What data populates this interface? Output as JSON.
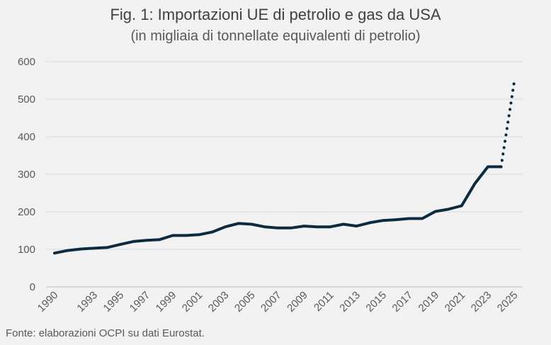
{
  "header": {
    "title": "Fig. 1: Importazioni UE di petrolio e gas da USA",
    "subtitle": "(in migliaia di tonnellate equivalenti di petrolio)"
  },
  "footer": {
    "source": "Fonte: elaborazioni OCPI su dati Eurostat."
  },
  "chart_data": {
    "type": "line",
    "title": "Fig. 1: Importazioni UE di petrolio e gas da USA",
    "subtitle": "(in migliaia di tonnellate equivalenti di petrolio)",
    "xlabel": "",
    "ylabel": "",
    "xlim": [
      1990,
      2025
    ],
    "ylim": [
      0,
      600
    ],
    "y_ticks": [
      0,
      100,
      200,
      300,
      400,
      500,
      600
    ],
    "x_tick_labels": [
      "1990",
      "1993",
      "1995",
      "1997",
      "1999",
      "2001",
      "2003",
      "2005",
      "2007",
      "2009",
      "2011",
      "2013",
      "2015",
      "2017",
      "2019",
      "2021",
      "2023",
      "2025"
    ],
    "grid": "horizontal",
    "legend": "none",
    "series": [
      {
        "style": "solid",
        "color": "#0d2b3e",
        "x": [
          1990,
          1991,
          1992,
          1993,
          1994,
          1995,
          1996,
          1997,
          1998,
          1999,
          2000,
          2001,
          2002,
          2003,
          2004,
          2005,
          2006,
          2007,
          2008,
          2009,
          2010,
          2011,
          2012,
          2013,
          2014,
          2015,
          2016,
          2017,
          2018,
          2019,
          2020,
          2021,
          2022,
          2023,
          2024
        ],
        "values": [
          90,
          97,
          101,
          103,
          105,
          113,
          121,
          124,
          126,
          137,
          137,
          139,
          146,
          160,
          169,
          167,
          160,
          157,
          157,
          162,
          160,
          160,
          167,
          162,
          171,
          177,
          179,
          182,
          182,
          201,
          207,
          216,
          275,
          320,
          320
        ]
      },
      {
        "style": "dotted",
        "color": "#0d2b3e",
        "x": [
          2024,
          2025
        ],
        "values": [
          320,
          545
        ]
      }
    ]
  }
}
